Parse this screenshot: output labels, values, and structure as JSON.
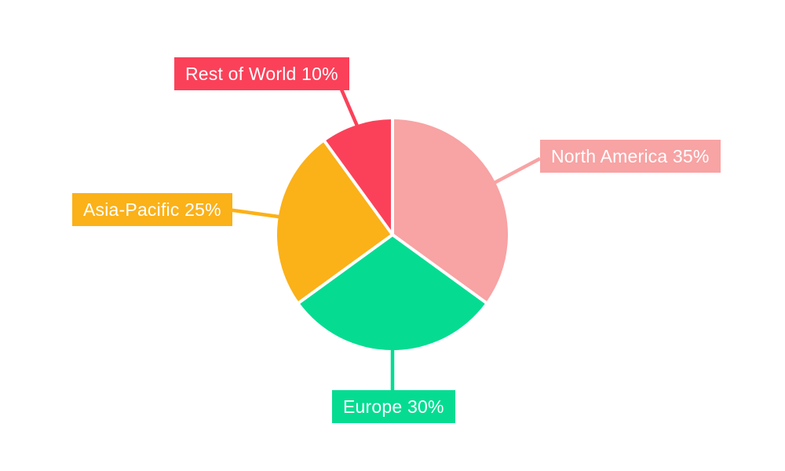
{
  "background": "#FFFFFF",
  "chart_data": {
    "type": "pie",
    "title": "",
    "categories": [
      "North America",
      "Europe",
      "Asia-Pacific",
      "Rest of World"
    ],
    "values": [
      35,
      30,
      25,
      10
    ],
    "unit": "%",
    "slice_labels": [
      "North America 35%",
      "Europe 30%",
      "Asia-Pacific 25%",
      "Rest of World 10%"
    ],
    "colors": [
      "#F8A3A4",
      "#05DC92",
      "#FBB118",
      "#FB4159"
    ],
    "label_text_color": "#FFFFFF",
    "gap_color": "#FFFFFF",
    "start_angle_deg": 0,
    "direction": "clockwise",
    "legend_position": "none",
    "label_style": "external-callout-boxes"
  }
}
